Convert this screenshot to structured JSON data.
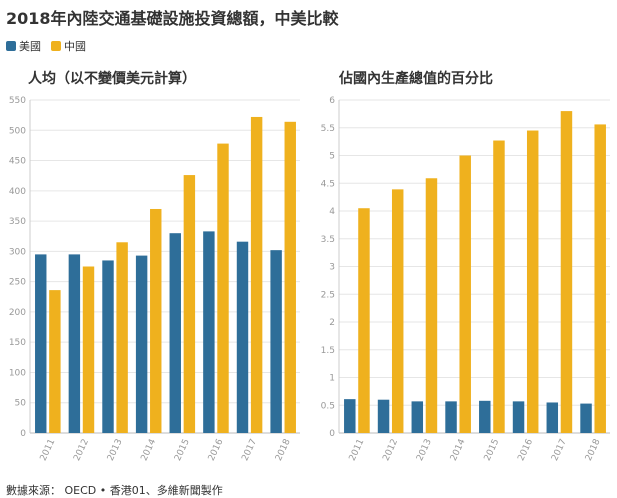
{
  "title": "2018年內陸交通基礎設施投資總額，中美比較",
  "legend": [
    {
      "name": "美國",
      "color": "#2e6e99"
    },
    {
      "name": "中國",
      "color": "#efb11e"
    }
  ],
  "source": "數據來源：  OECD • 香港01、多維新聞製作",
  "chart_data": [
    {
      "type": "bar",
      "title": "人均（以不變價美元計算）",
      "categories": [
        "2011",
        "2012",
        "2013",
        "2014",
        "2015",
        "2016",
        "2017",
        "2018"
      ],
      "series": [
        {
          "name": "美國",
          "color": "#2e6e99",
          "values": [
            295,
            295,
            285,
            293,
            330,
            333,
            316,
            302
          ]
        },
        {
          "name": "中國",
          "color": "#efb11e",
          "values": [
            236,
            275,
            315,
            370,
            426,
            478,
            522,
            514
          ]
        }
      ],
      "ylim": [
        0,
        550
      ],
      "yticks": [
        0,
        50,
        100,
        150,
        200,
        250,
        300,
        350,
        400,
        450,
        500,
        550
      ],
      "grid": true,
      "xlabel": "",
      "ylabel": ""
    },
    {
      "type": "bar",
      "title": "佔國內生產總值的百分比",
      "categories": [
        "2011",
        "2012",
        "2013",
        "2014",
        "2015",
        "2016",
        "2017",
        "2018"
      ],
      "series": [
        {
          "name": "美國",
          "color": "#2e6e99",
          "values": [
            0.61,
            0.6,
            0.57,
            0.57,
            0.58,
            0.57,
            0.55,
            0.53
          ]
        },
        {
          "name": "中國",
          "color": "#efb11e",
          "values": [
            4.05,
            4.39,
            4.59,
            5.0,
            5.27,
            5.45,
            5.8,
            5.56
          ]
        }
      ],
      "ylim": [
        0,
        6
      ],
      "yticks": [
        "0",
        "0.5",
        "1",
        "1.5",
        "2",
        "2.5",
        "3",
        "3.5",
        "4",
        "4.5",
        "5",
        "5.5",
        "6"
      ],
      "grid": true,
      "xlabel": "",
      "ylabel": ""
    }
  ]
}
